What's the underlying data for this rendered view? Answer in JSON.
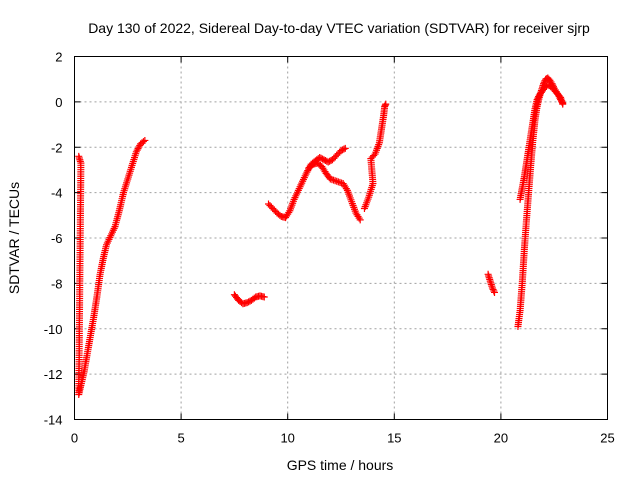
{
  "chart_data": {
    "type": "scatter",
    "title": "Day 130 of 2022, Sidereal Day-to-day VTEC variation (SDTVAR) for receiver sjrp",
    "xlabel": "GPS time / hours",
    "ylabel": "SDTVAR / TECUs",
    "xlim": [
      0,
      25
    ],
    "ylim": [
      -14,
      2
    ],
    "xticks": [
      "0",
      "5",
      "10",
      "15",
      "20",
      "25"
    ],
    "yticks": [
      "2",
      "0",
      "-2",
      "-4",
      "-6",
      "-8",
      "-10",
      "-12",
      "-14"
    ],
    "grid": true,
    "marker": "plus",
    "color": "#ff0000",
    "series": [
      {
        "points": [
          [
            0.2,
            -2.4
          ],
          [
            0.25,
            -2.55
          ],
          [
            0.3,
            -2.7
          ],
          [
            0.2,
            -12.9
          ],
          [
            0.3,
            -12.5
          ],
          [
            0.45,
            -11.9
          ],
          [
            0.6,
            -11.1
          ],
          [
            0.75,
            -10.3
          ],
          [
            0.9,
            -9.5
          ],
          [
            1.05,
            -8.6
          ],
          [
            1.2,
            -7.6
          ],
          [
            1.35,
            -6.9
          ],
          [
            1.5,
            -6.3
          ],
          [
            1.7,
            -5.9
          ],
          [
            1.9,
            -5.5
          ],
          [
            2.1,
            -4.8
          ],
          [
            2.3,
            -4.0
          ],
          [
            2.5,
            -3.4
          ],
          [
            2.7,
            -2.8
          ],
          [
            2.9,
            -2.2
          ],
          [
            3.1,
            -1.85
          ],
          [
            3.3,
            -1.7
          ]
        ]
      },
      {
        "points": [
          [
            7.5,
            -8.5
          ],
          [
            7.7,
            -8.75
          ],
          [
            7.9,
            -8.9
          ],
          [
            8.1,
            -8.85
          ],
          [
            8.3,
            -8.75
          ],
          [
            8.5,
            -8.6
          ],
          [
            8.7,
            -8.55
          ],
          [
            8.9,
            -8.6
          ]
        ]
      },
      {
        "points": [
          [
            9.1,
            -4.5
          ],
          [
            9.3,
            -4.7
          ],
          [
            9.5,
            -4.9
          ],
          [
            9.7,
            -5.05
          ],
          [
            9.9,
            -5.1
          ],
          [
            10.1,
            -4.8
          ],
          [
            10.3,
            -4.3
          ],
          [
            10.5,
            -3.9
          ],
          [
            10.7,
            -3.5
          ],
          [
            10.9,
            -3.1
          ],
          [
            11.1,
            -2.75
          ],
          [
            11.3,
            -2.6
          ],
          [
            11.5,
            -2.45
          ],
          [
            11.7,
            -2.55
          ],
          [
            11.9,
            -2.65
          ],
          [
            12.1,
            -2.55
          ],
          [
            12.3,
            -2.35
          ],
          [
            12.5,
            -2.15
          ],
          [
            12.7,
            -2.05
          ]
        ]
      },
      {
        "points": [
          [
            11.0,
            -2.9
          ],
          [
            11.2,
            -2.75
          ],
          [
            11.4,
            -2.7
          ],
          [
            11.6,
            -2.85
          ],
          [
            11.8,
            -3.15
          ],
          [
            12.0,
            -3.4
          ],
          [
            12.3,
            -3.5
          ],
          [
            12.6,
            -3.6
          ],
          [
            12.8,
            -3.9
          ],
          [
            13.0,
            -4.4
          ],
          [
            13.2,
            -4.9
          ],
          [
            13.4,
            -5.2
          ]
        ]
      },
      {
        "points": [
          [
            13.6,
            -4.7
          ],
          [
            13.8,
            -4.2
          ],
          [
            14.0,
            -3.6
          ],
          [
            13.9,
            -2.5
          ],
          [
            14.1,
            -2.3
          ],
          [
            14.3,
            -1.8
          ],
          [
            14.4,
            -1.2
          ],
          [
            14.5,
            -0.6
          ],
          [
            14.55,
            -0.2
          ],
          [
            14.6,
            -0.1
          ]
        ]
      },
      {
        "points": [
          [
            19.4,
            -7.6
          ],
          [
            19.5,
            -7.9
          ],
          [
            19.6,
            -8.2
          ],
          [
            19.7,
            -8.4
          ]
        ]
      },
      {
        "points": [
          [
            20.8,
            -9.9
          ],
          [
            20.9,
            -9.2
          ],
          [
            21.0,
            -8.0
          ],
          [
            21.1,
            -6.5
          ],
          [
            21.2,
            -5.2
          ],
          [
            21.3,
            -4.0
          ],
          [
            21.4,
            -2.8
          ],
          [
            21.5,
            -1.7
          ],
          [
            21.6,
            -0.8
          ],
          [
            21.7,
            -0.2
          ],
          [
            21.8,
            0.2
          ],
          [
            21.9,
            0.5
          ],
          [
            22.0,
            0.8
          ],
          [
            22.1,
            1.0
          ],
          [
            22.2,
            1.05
          ],
          [
            22.3,
            0.95
          ],
          [
            22.4,
            0.8
          ],
          [
            22.5,
            0.6
          ],
          [
            22.6,
            0.45
          ],
          [
            22.7,
            0.3
          ],
          [
            22.8,
            0.1
          ],
          [
            22.9,
            -0.05
          ]
        ]
      },
      {
        "points": [
          [
            20.9,
            -4.3
          ],
          [
            21.0,
            -3.8
          ],
          [
            21.1,
            -3.3
          ],
          [
            21.2,
            -2.7
          ],
          [
            21.3,
            -2.1
          ],
          [
            21.4,
            -1.5
          ],
          [
            21.5,
            -0.9
          ],
          [
            21.6,
            -0.3
          ],
          [
            21.7,
            0.1
          ],
          [
            21.8,
            0.3
          ],
          [
            22.0,
            0.55
          ],
          [
            22.2,
            0.75
          ],
          [
            22.4,
            0.65
          ],
          [
            22.6,
            0.4
          ],
          [
            22.8,
            0.2
          ],
          [
            22.9,
            -0.1
          ]
        ]
      }
    ]
  }
}
